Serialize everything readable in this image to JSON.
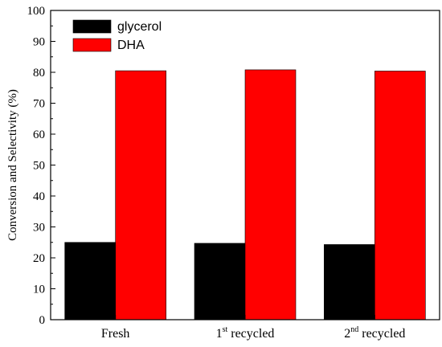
{
  "chart_data": {
    "type": "bar",
    "xlabel": "",
    "ylabel": "Conversion and Selectivity (%)",
    "ylim": [
      0,
      100
    ],
    "yticks": [
      0,
      10,
      20,
      30,
      40,
      50,
      60,
      70,
      80,
      90,
      100
    ],
    "categories": [
      {
        "text": "Fresh",
        "sup": "",
        "suffix": ""
      },
      {
        "text": "1",
        "sup": "st",
        "suffix": " recycled"
      },
      {
        "text": "2",
        "sup": "nd",
        "suffix": " recycled"
      }
    ],
    "series": [
      {
        "name": "glycerol",
        "color": "#000000",
        "values": [
          25.0,
          24.7,
          24.3
        ]
      },
      {
        "name": "DHA",
        "color": "#ff0000",
        "values": [
          80.5,
          80.8,
          80.4
        ]
      }
    ],
    "grid": false,
    "legend_position": "top-left"
  }
}
